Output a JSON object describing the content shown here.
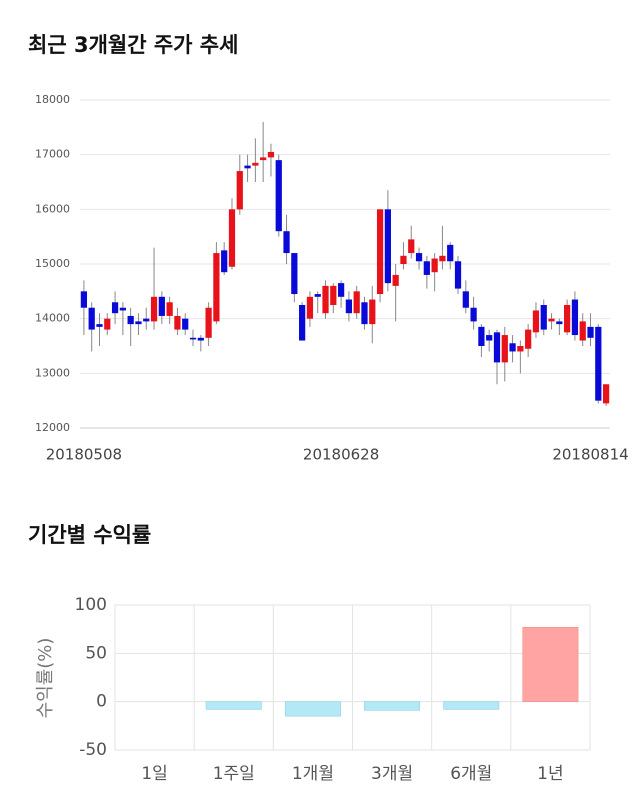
{
  "chart_data": [
    {
      "type": "candlestick",
      "title": "최근 3개월간 주가 추세",
      "categories": [
        "20180508",
        null,
        null,
        null,
        null,
        null,
        null,
        null,
        null,
        null,
        null,
        null,
        null,
        null,
        null,
        null,
        null,
        null,
        null,
        null,
        null,
        null,
        null,
        null,
        null,
        null,
        null,
        null,
        null,
        null,
        null,
        null,
        null,
        "20180628",
        null,
        null,
        null,
        null,
        null,
        null,
        null,
        null,
        null,
        null,
        null,
        null,
        null,
        null,
        null,
        null,
        null,
        null,
        null,
        null,
        null,
        null,
        null,
        null,
        null,
        null,
        null,
        null,
        null,
        null,
        null,
        "20180814",
        null,
        null
      ],
      "open": [
        14500,
        14200,
        13900,
        13800,
        14300,
        14200,
        14050,
        13950,
        14000,
        13950,
        14400,
        14050,
        13800,
        14000,
        13650,
        13650,
        13650,
        13950,
        15250,
        14950,
        16000,
        16800,
        16800,
        16900,
        16950,
        16900,
        15600,
        15200,
        14250,
        14000,
        14450,
        14100,
        14250,
        14650,
        14350,
        14100,
        14300,
        13900,
        14450,
        16000,
        14600,
        15000,
        15200,
        15200,
        15050,
        14850,
        15050,
        15350,
        15050,
        14500,
        14200,
        13850,
        13700,
        13750,
        13200,
        13550,
        13400,
        13450,
        13750,
        14250,
        13950,
        13950,
        13750,
        14350,
        13600,
        13850,
        13850,
        12450
      ],
      "high": [
        14700,
        14300,
        14100,
        14100,
        14500,
        14300,
        14200,
        14100,
        14200,
        15300,
        14500,
        14400,
        14200,
        14100,
        13800,
        13700,
        14300,
        15400,
        15400,
        16200,
        17000,
        17000,
        17300,
        17600,
        17200,
        17000,
        15900,
        15200,
        14300,
        14500,
        14500,
        14700,
        14650,
        14700,
        14500,
        14600,
        14400,
        14600,
        16000,
        16350,
        15000,
        15400,
        15700,
        15300,
        15150,
        15200,
        15700,
        15400,
        15150,
        14700,
        14400,
        13900,
        13800,
        13800,
        13850,
        13700,
        13600,
        13900,
        14300,
        14350,
        14100,
        14000,
        14350,
        14500,
        14100,
        14100,
        13900,
        12800
      ],
      "low": [
        13700,
        13400,
        13500,
        13700,
        13900,
        13700,
        13500,
        13700,
        13800,
        13800,
        13900,
        13900,
        13700,
        13700,
        13500,
        13400,
        13500,
        13900,
        14800,
        14900,
        15900,
        16500,
        16500,
        16500,
        16600,
        15500,
        15000,
        14300,
        13600,
        13850,
        14100,
        14000,
        14100,
        14200,
        13950,
        14000,
        13800,
        13550,
        14300,
        14500,
        13950,
        14900,
        15100,
        14900,
        14550,
        14500,
        14900,
        14900,
        14450,
        14100,
        13800,
        13300,
        13400,
        12800,
        12850,
        13200,
        13000,
        13300,
        13650,
        13700,
        13800,
        13700,
        13700,
        13600,
        13500,
        13500,
        12450,
        12400
      ],
      "close": [
        14200,
        13800,
        13850,
        14000,
        14100,
        14150,
        13900,
        13900,
        13950,
        14400,
        14050,
        14300,
        14050,
        13800,
        13620,
        13600,
        14200,
        15200,
        14850,
        16000,
        16700,
        16750,
        16850,
        16950,
        17050,
        15600,
        15200,
        14450,
        13600,
        14400,
        14400,
        14600,
        14600,
        14400,
        14100,
        14500,
        13900,
        14350,
        16000,
        14650,
        14800,
        15150,
        15450,
        15050,
        14800,
        15100,
        15150,
        15050,
        14550,
        14200,
        13950,
        13500,
        13600,
        13200,
        13700,
        13400,
        13500,
        13800,
        14150,
        13800,
        14000,
        13900,
        14250,
        13700,
        13950,
        13650,
        12500,
        12800
      ],
      "up_color": "#e8121a",
      "down_color": "#0a0ad8",
      "ylim": [
        12000,
        18000
      ],
      "yticks": [
        12000,
        13000,
        14000,
        15000,
        16000,
        17000,
        18000
      ],
      "grid": true
    },
    {
      "type": "bar",
      "title": "기간별 수익률",
      "ylabel": "수익률(%)",
      "categories": [
        "1일",
        "1주일",
        "1개월",
        "3개월",
        "6개월",
        "1년"
      ],
      "values": [
        0,
        -8,
        -15,
        -9,
        -8,
        77
      ],
      "positive_color": "#ffa3a3",
      "negative_color": "#b3e8f5",
      "ylim": [
        -50,
        100
      ],
      "yticks": [
        -50,
        0,
        50,
        100
      ],
      "grid": true
    }
  ]
}
